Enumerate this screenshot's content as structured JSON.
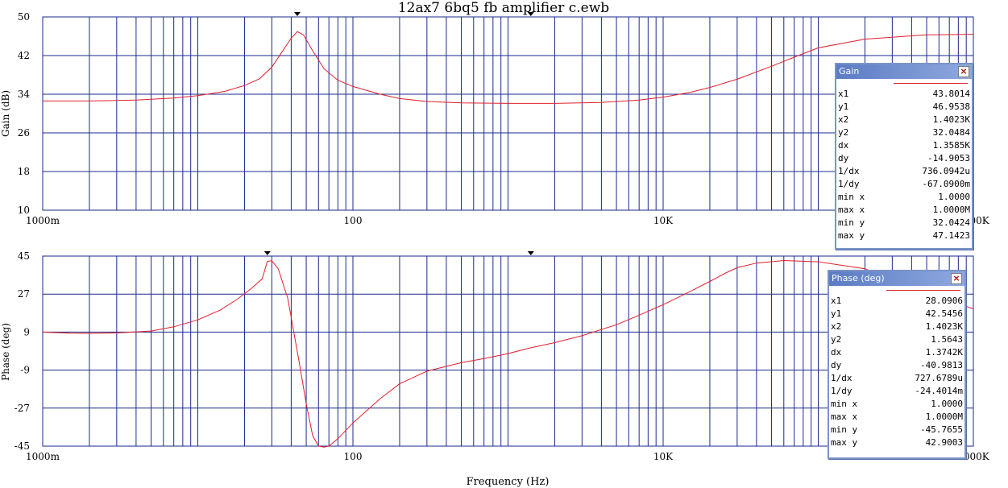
{
  "chart_data": [
    {
      "type": "line",
      "title": "12ax7 6bq5 fb amplifier c.ewb",
      "xlabel": "",
      "ylabel": "Gain (dB)",
      "xscale": "log",
      "xlim": [
        1,
        1000000
      ],
      "ylim": [
        10,
        50
      ],
      "yticks": [
        "10",
        "18",
        "26",
        "34",
        "42",
        "50"
      ],
      "xticks": [
        "1000m",
        "100",
        "10K",
        "1000K"
      ],
      "grid": true,
      "color": "#e0202c",
      "cursors_hz": [
        43.8014,
        1402.3
      ],
      "series": [
        {
          "x": [
            1,
            2,
            4,
            7,
            10,
            15,
            20,
            25,
            30,
            35,
            40,
            43.8,
            48,
            55,
            65,
            80,
            100,
            150,
            200,
            300,
            500,
            1000,
            2000,
            4000,
            7000,
            10000,
            15000,
            20000,
            30000,
            50000,
            80000,
            100000,
            200000,
            500000,
            1000000
          ],
          "values": [
            32.6,
            32.6,
            32.8,
            33.2,
            33.7,
            34.6,
            35.8,
            37.2,
            39.6,
            42.8,
            45.6,
            46.95,
            46.3,
            43.0,
            39.3,
            36.9,
            35.6,
            34.0,
            33.1,
            32.5,
            32.2,
            32.1,
            32.1,
            32.3,
            32.8,
            33.4,
            34.4,
            35.4,
            37.1,
            39.8,
            42.4,
            43.6,
            45.4,
            46.3,
            46.4
          ]
        }
      ]
    },
    {
      "type": "line",
      "title": "",
      "xlabel": "Frequency (Hz)",
      "ylabel": "Phase (deg)",
      "xscale": "log",
      "xlim": [
        1,
        1000000
      ],
      "ylim": [
        -45,
        45
      ],
      "yticks": [
        "-45",
        "-27",
        "-9",
        "9",
        "27",
        "45"
      ],
      "xticks": [
        "1000m",
        "100",
        "10K",
        "1000K"
      ],
      "grid": true,
      "color": "#e0202c",
      "cursors_hz": [
        28.0906,
        1402.3
      ],
      "series": [
        {
          "x": [
            1,
            1.5,
            2,
            3,
            5,
            7,
            10,
            14,
            18,
            22,
            26,
            28.09,
            30,
            33,
            38,
            45,
            50,
            55,
            60,
            65,
            70,
            80,
            100,
            150,
            200,
            300,
            500,
            700,
            1000,
            1402,
            2000,
            3000,
            5000,
            7000,
            10000,
            15000,
            20000,
            25000,
            30000,
            40000,
            60000,
            100000,
            200000,
            500000,
            1000000
          ],
          "values": [
            9.0,
            8.5,
            8.4,
            8.6,
            9.5,
            11.5,
            14.8,
            19.5,
            24.6,
            29.5,
            34.2,
            42.5,
            42.8,
            39.0,
            25.0,
            -5.0,
            -25.0,
            -40.0,
            -45.0,
            -45.5,
            -45.0,
            -41.5,
            -34.0,
            -22.5,
            -15.5,
            -9.5,
            -5.5,
            -3.5,
            -1.2,
            1.56,
            4.0,
            7.3,
            12.5,
            17.0,
            22.0,
            28.3,
            33.0,
            36.8,
            39.5,
            41.7,
            42.9,
            42.3,
            39.0,
            28.0,
            20.0
          ]
        }
      ]
    }
  ],
  "readouts": {
    "gain": {
      "title": "Gain",
      "rows": [
        {
          "k": "x1",
          "v": "43.8014"
        },
        {
          "k": "y1",
          "v": "46.9538"
        },
        {
          "k": "x2",
          "v": "1.4023K"
        },
        {
          "k": "y2",
          "v": "32.0484"
        },
        {
          "k": "dx",
          "v": "1.3585K"
        },
        {
          "k": "dy",
          "v": "-14.9053"
        },
        {
          "k": "1/dx",
          "v": "736.0942u"
        },
        {
          "k": "1/dy",
          "v": "-67.0900m"
        },
        {
          "k": "min x",
          "v": "1.0000"
        },
        {
          "k": "max x",
          "v": "1.0000M"
        },
        {
          "k": "min y",
          "v": "32.0424"
        },
        {
          "k": "max y",
          "v": "47.1423"
        }
      ]
    },
    "phase": {
      "title": "Phase (deg)",
      "rows": [
        {
          "k": "x1",
          "v": "28.0906"
        },
        {
          "k": "y1",
          "v": "42.5456"
        },
        {
          "k": "x2",
          "v": "1.4023K"
        },
        {
          "k": "y2",
          "v": "1.5643"
        },
        {
          "k": "dx",
          "v": "1.3742K"
        },
        {
          "k": "dy",
          "v": "-40.9813"
        },
        {
          "k": "1/dx",
          "v": "727.6789u"
        },
        {
          "k": "1/dy",
          "v": "-24.4014m"
        },
        {
          "k": "min x",
          "v": "1.0000"
        },
        {
          "k": "max x",
          "v": "1.0000M"
        },
        {
          "k": "min y",
          "v": "-45.7655"
        },
        {
          "k": "max y",
          "v": "42.9003"
        }
      ]
    }
  },
  "colors": {
    "grid": "#1a2a8c",
    "trace": "#e0202c",
    "panel_border": "#7a94c8",
    "panel_title": "#5b7bc4"
  },
  "icons": {
    "close": "close-icon",
    "cursor": "cursor-marker-icon"
  },
  "close_glyph": "×"
}
